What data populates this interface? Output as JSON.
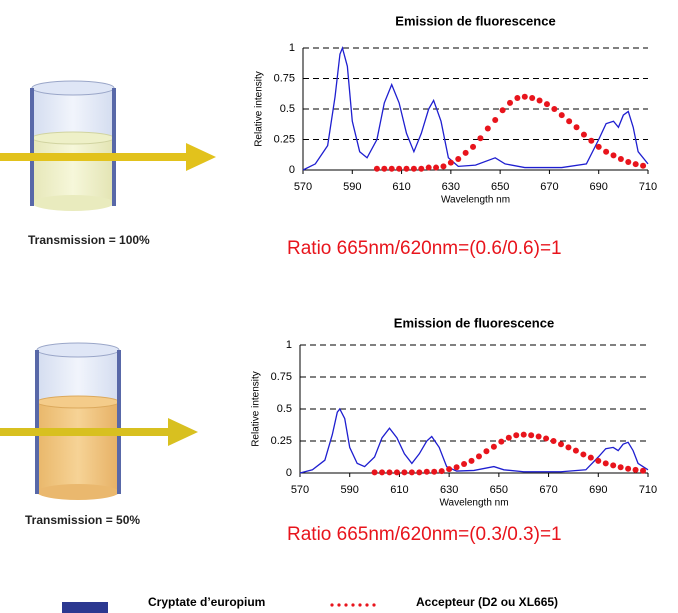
{
  "chart_data": [
    {
      "type": "line",
      "title": "Emission de fluorescence",
      "xlabel": "Wavelength  nm",
      "ylabel": "Relative intensity",
      "xlim": [
        570,
        710
      ],
      "xticks": [
        570,
        590,
        610,
        630,
        650,
        670,
        690,
        710
      ],
      "ylim": [
        0,
        1
      ],
      "yticks": [
        0,
        0.25,
        0.5,
        0.75,
        1
      ],
      "grid": true,
      "annotation": "Ratio 665nm/620nm=(0.6/0.6)=1",
      "series": [
        {
          "name": "Cryptate d’europium",
          "color": "#1f1fd0",
          "style": "line",
          "x": [
            570,
            575,
            580,
            583,
            585,
            586,
            588,
            590,
            593,
            596,
            600,
            603,
            606,
            609,
            612,
            615,
            618,
            621,
            623,
            626,
            629,
            633,
            640,
            648,
            652,
            660,
            675,
            685,
            690,
            693,
            696,
            698,
            700,
            702,
            704,
            706,
            710
          ],
          "values": [
            0,
            0.05,
            0.2,
            0.6,
            0.95,
            1,
            0.85,
            0.4,
            0.15,
            0.1,
            0.25,
            0.55,
            0.7,
            0.55,
            0.3,
            0.15,
            0.3,
            0.5,
            0.57,
            0.4,
            0.1,
            0.03,
            0.04,
            0.1,
            0.05,
            0.02,
            0.02,
            0.05,
            0.25,
            0.38,
            0.4,
            0.35,
            0.45,
            0.48,
            0.35,
            0.15,
            0.05
          ]
        },
        {
          "name": "Accepteur (D2 ou XL665)",
          "color": "#e8141c",
          "style": "dots",
          "x": [
            600,
            603,
            606,
            609,
            612,
            615,
            618,
            621,
            624,
            627,
            630,
            633,
            636,
            639,
            642,
            645,
            648,
            651,
            654,
            657,
            660,
            663,
            666,
            669,
            672,
            675,
            678,
            681,
            684,
            687,
            690,
            693,
            696,
            699,
            702,
            705,
            708
          ],
          "values": [
            0.01,
            0.01,
            0.01,
            0.01,
            0.01,
            0.01,
            0.01,
            0.02,
            0.02,
            0.03,
            0.06,
            0.09,
            0.14,
            0.19,
            0.26,
            0.34,
            0.41,
            0.49,
            0.55,
            0.59,
            0.6,
            0.59,
            0.57,
            0.54,
            0.5,
            0.45,
            0.4,
            0.35,
            0.29,
            0.24,
            0.19,
            0.15,
            0.12,
            0.09,
            0.066,
            0.048,
            0.035
          ]
        }
      ]
    },
    {
      "type": "line",
      "title": "Emission de fluorescence",
      "xlabel": "Wavelength  nm",
      "ylabel": "Relative intensity",
      "xlim": [
        570,
        710
      ],
      "xticks": [
        570,
        590,
        610,
        630,
        650,
        670,
        690,
        710
      ],
      "ylim": [
        0,
        1
      ],
      "yticks": [
        0,
        0.25,
        0.5,
        0.75,
        1
      ],
      "grid": true,
      "annotation": "Ratio 665nm/620nm=(0.3/0.3)=1",
      "series": [
        {
          "color": "#1f1fd0",
          "style": "line",
          "x": [
            570,
            575,
            580,
            583,
            585,
            586,
            588,
            590,
            593,
            596,
            600,
            603,
            606,
            609,
            612,
            615,
            618,
            621,
            623,
            626,
            629,
            633,
            640,
            648,
            652,
            660,
            675,
            685,
            690,
            693,
            696,
            698,
            700,
            702,
            704,
            706,
            710
          ],
          "values": [
            0,
            0.025,
            0.1,
            0.3,
            0.475,
            0.5,
            0.425,
            0.2,
            0.075,
            0.05,
            0.125,
            0.275,
            0.35,
            0.275,
            0.15,
            0.075,
            0.15,
            0.25,
            0.285,
            0.2,
            0.05,
            0.015,
            0.02,
            0.05,
            0.025,
            0.01,
            0.01,
            0.025,
            0.125,
            0.19,
            0.2,
            0.175,
            0.225,
            0.24,
            0.175,
            0.075,
            0.025
          ]
        },
        {
          "color": "#e8141c",
          "style": "dots",
          "x": [
            600,
            603,
            606,
            609,
            612,
            615,
            618,
            621,
            624,
            627,
            630,
            633,
            636,
            639,
            642,
            645,
            648,
            651,
            654,
            657,
            660,
            663,
            666,
            669,
            672,
            675,
            678,
            681,
            684,
            687,
            690,
            693,
            696,
            699,
            702,
            705,
            708
          ],
          "values": [
            0.005,
            0.005,
            0.005,
            0.005,
            0.005,
            0.005,
            0.005,
            0.01,
            0.01,
            0.015,
            0.03,
            0.045,
            0.07,
            0.095,
            0.13,
            0.17,
            0.205,
            0.245,
            0.275,
            0.295,
            0.3,
            0.295,
            0.285,
            0.27,
            0.25,
            0.225,
            0.2,
            0.175,
            0.145,
            0.12,
            0.095,
            0.075,
            0.06,
            0.045,
            0.033,
            0.024,
            0.018
          ]
        }
      ]
    }
  ],
  "illustrations": [
    {
      "label": "Transmission = 100%"
    },
    {
      "label": "Transmission = 50%"
    }
  ]
}
